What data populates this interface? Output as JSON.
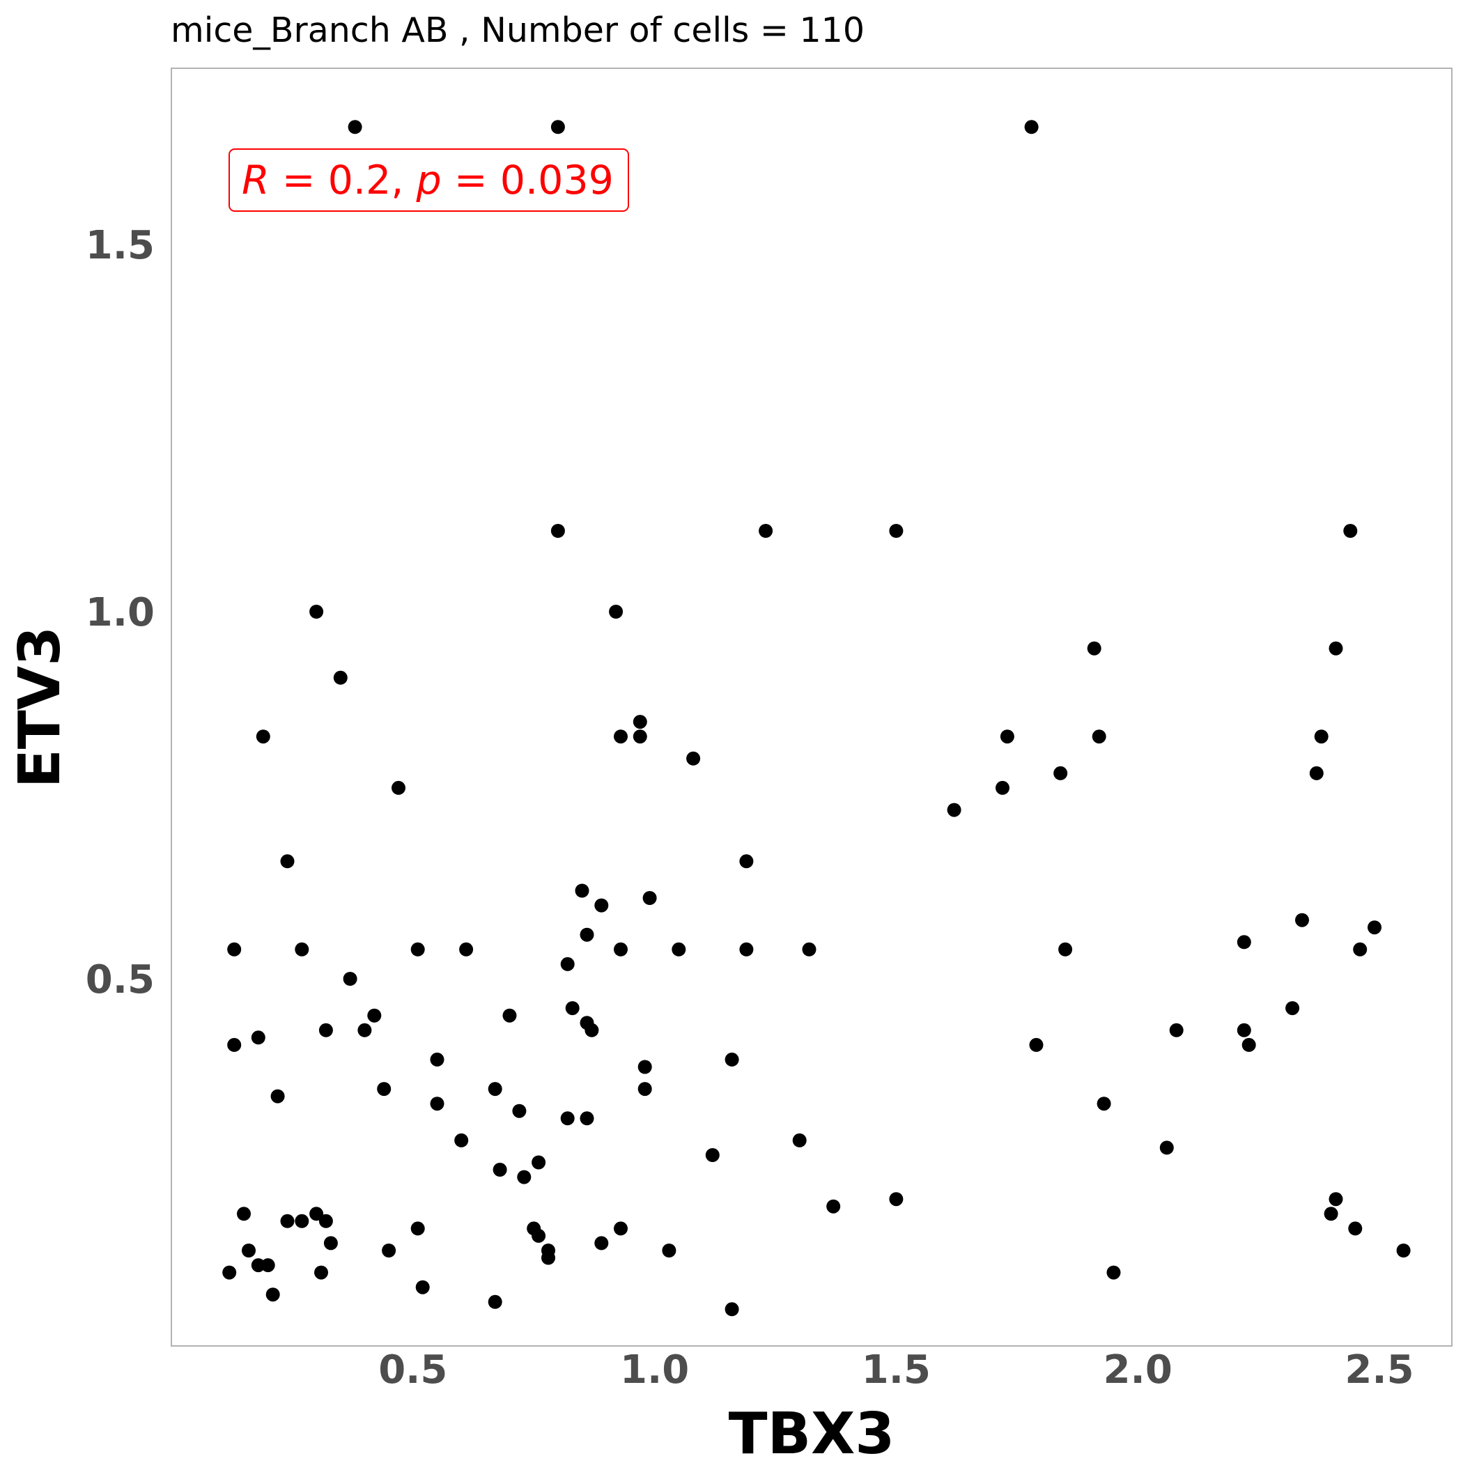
{
  "chart_data": {
    "type": "scatter",
    "title": "mice_Branch AB , Number of cells =  110",
    "xlabel": "TBX3",
    "ylabel": "ETV3",
    "xlim": [
      0.0,
      2.65
    ],
    "ylim": [
      0.0,
      1.74
    ],
    "xticks": [
      0.5,
      1.0,
      1.5,
      2.0,
      2.5
    ],
    "xtick_labels": [
      "0.5",
      "1.0",
      "1.5",
      "2.0",
      "2.5"
    ],
    "yticks": [
      0.5,
      1.0,
      1.5
    ],
    "ytick_labels": [
      "0.5",
      "1.0",
      "1.5"
    ],
    "grid": false,
    "point_color": "#000000",
    "annotation": {
      "R_symbol": "R",
      "R_value": "0.2",
      "p_symbol": "p",
      "p_value": "0.039",
      "color": "#ff0000"
    },
    "points": [
      [
        0.38,
        1.66
      ],
      [
        0.8,
        1.66
      ],
      [
        1.78,
        1.66
      ],
      [
        0.8,
        1.11
      ],
      [
        1.23,
        1.11
      ],
      [
        1.5,
        1.11
      ],
      [
        2.44,
        1.11
      ],
      [
        0.3,
        1.0
      ],
      [
        0.92,
        1.0
      ],
      [
        1.91,
        0.95
      ],
      [
        2.41,
        0.95
      ],
      [
        0.35,
        0.91
      ],
      [
        0.97,
        0.85
      ],
      [
        0.93,
        0.83
      ],
      [
        0.97,
        0.83
      ],
      [
        0.19,
        0.83
      ],
      [
        1.73,
        0.83
      ],
      [
        1.92,
        0.83
      ],
      [
        2.38,
        0.83
      ],
      [
        1.08,
        0.8
      ],
      [
        1.84,
        0.78
      ],
      [
        2.37,
        0.78
      ],
      [
        0.47,
        0.76
      ],
      [
        1.72,
        0.76
      ],
      [
        1.62,
        0.73
      ],
      [
        0.24,
        0.66
      ],
      [
        1.19,
        0.66
      ],
      [
        0.85,
        0.62
      ],
      [
        0.99,
        0.61
      ],
      [
        0.89,
        0.6
      ],
      [
        2.34,
        0.58
      ],
      [
        2.49,
        0.57
      ],
      [
        0.86,
        0.56
      ],
      [
        2.22,
        0.55
      ],
      [
        0.13,
        0.54
      ],
      [
        0.27,
        0.54
      ],
      [
        0.51,
        0.54
      ],
      [
        0.61,
        0.54
      ],
      [
        0.93,
        0.54
      ],
      [
        1.05,
        0.54
      ],
      [
        1.19,
        0.54
      ],
      [
        1.32,
        0.54
      ],
      [
        1.85,
        0.54
      ],
      [
        2.46,
        0.54
      ],
      [
        0.82,
        0.52
      ],
      [
        0.37,
        0.5
      ],
      [
        0.83,
        0.46
      ],
      [
        2.32,
        0.46
      ],
      [
        0.42,
        0.45
      ],
      [
        0.7,
        0.45
      ],
      [
        0.86,
        0.44
      ],
      [
        2.22,
        0.43
      ],
      [
        0.32,
        0.43
      ],
      [
        0.4,
        0.43
      ],
      [
        0.87,
        0.43
      ],
      [
        2.08,
        0.43
      ],
      [
        0.18,
        0.42
      ],
      [
        1.79,
        0.41
      ],
      [
        2.23,
        0.41
      ],
      [
        0.13,
        0.41
      ],
      [
        0.55,
        0.39
      ],
      [
        1.16,
        0.39
      ],
      [
        0.98,
        0.38
      ],
      [
        0.44,
        0.35
      ],
      [
        0.67,
        0.35
      ],
      [
        0.98,
        0.35
      ],
      [
        0.22,
        0.34
      ],
      [
        0.55,
        0.33
      ],
      [
        0.72,
        0.32
      ],
      [
        1.93,
        0.33
      ],
      [
        0.82,
        0.31
      ],
      [
        0.86,
        0.31
      ],
      [
        0.6,
        0.28
      ],
      [
        1.3,
        0.28
      ],
      [
        2.06,
        0.27
      ],
      [
        1.12,
        0.26
      ],
      [
        0.76,
        0.25
      ],
      [
        0.68,
        0.24
      ],
      [
        0.73,
        0.23
      ],
      [
        1.5,
        0.2
      ],
      [
        1.37,
        0.19
      ],
      [
        2.41,
        0.2
      ],
      [
        0.15,
        0.18
      ],
      [
        0.3,
        0.18
      ],
      [
        2.4,
        0.18
      ],
      [
        0.24,
        0.17
      ],
      [
        0.27,
        0.17
      ],
      [
        0.32,
        0.17
      ],
      [
        0.51,
        0.16
      ],
      [
        0.75,
        0.16
      ],
      [
        0.93,
        0.16
      ],
      [
        2.45,
        0.16
      ],
      [
        0.76,
        0.15
      ],
      [
        0.33,
        0.14
      ],
      [
        0.89,
        0.14
      ],
      [
        0.16,
        0.13
      ],
      [
        0.45,
        0.13
      ],
      [
        0.78,
        0.13
      ],
      [
        1.03,
        0.13
      ],
      [
        2.55,
        0.13
      ],
      [
        0.78,
        0.12
      ],
      [
        0.2,
        0.11
      ],
      [
        0.18,
        0.11
      ],
      [
        0.12,
        0.1
      ],
      [
        0.31,
        0.1
      ],
      [
        1.95,
        0.1
      ],
      [
        0.52,
        0.08
      ],
      [
        0.21,
        0.07
      ],
      [
        0.67,
        0.06
      ],
      [
        1.16,
        0.05
      ]
    ]
  }
}
